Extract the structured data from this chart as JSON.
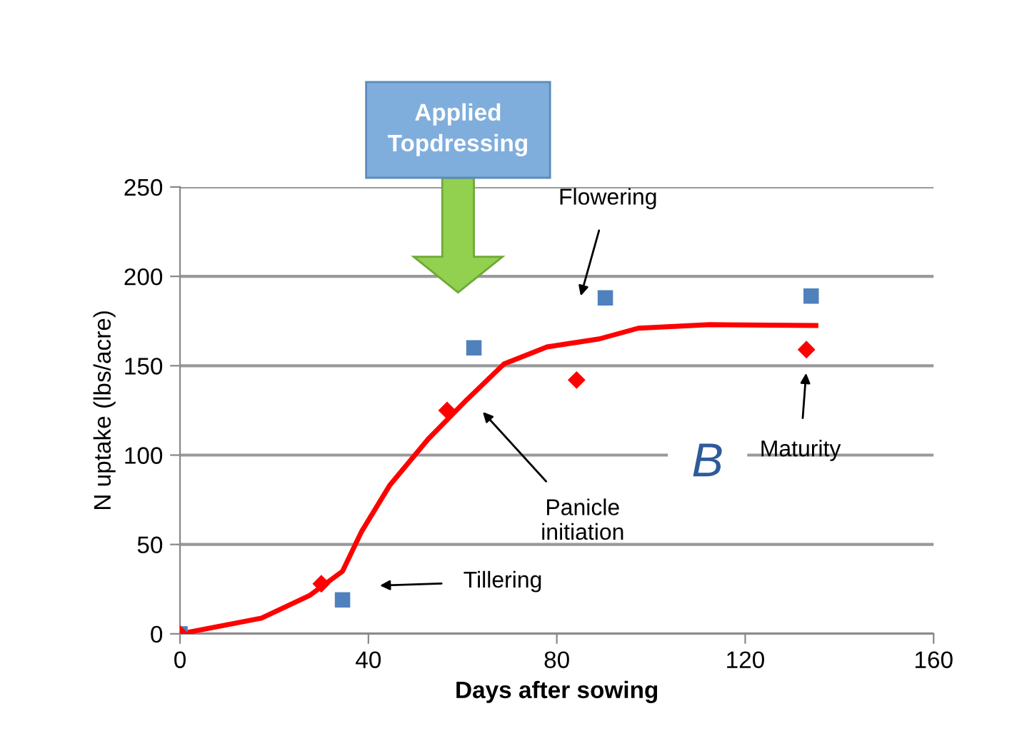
{
  "chart_data": {
    "type": "scatter",
    "xlabel": "Days after sowing",
    "ylabel": "N uptake (lbs/acre)",
    "xlim": [
      0,
      160
    ],
    "xticks": [
      0,
      40,
      80,
      120,
      160
    ],
    "ylim": [
      0,
      250
    ],
    "yticks": [
      0,
      50,
      100,
      150,
      200,
      250
    ],
    "grid": "y",
    "series": [
      {
        "marker": "square",
        "color": "#4f81bd",
        "x": [
          0,
          34.5,
          62.4,
          90.3,
          134
        ],
        "values": [
          0,
          19,
          160,
          188,
          189
        ]
      },
      {
        "marker": "diamond",
        "color": "#ff0000",
        "x": [
          0,
          30,
          56.7,
          84.2,
          133
        ],
        "values": [
          0,
          28,
          125,
          142,
          159
        ]
      },
      {
        "type": "line",
        "marker": "none",
        "line_style": "solid",
        "color": "#ff0000",
        "x": [
          0,
          17.3,
          27.6,
          34.5,
          38.5,
          44.5,
          52.7,
          60.9,
          68.8,
          77.9,
          89,
          97.3,
          112.4,
          135
        ],
        "values": [
          0,
          8.8,
          21.6,
          35,
          57,
          83,
          109,
          131,
          151,
          160.5,
          165,
          171,
          173,
          172.5
        ]
      }
    ],
    "annotations": [
      "Applied\nTopdressing",
      "Flowering",
      "Maturity",
      "Panicle\ninitiation",
      "Tillering",
      "B"
    ]
  }
}
